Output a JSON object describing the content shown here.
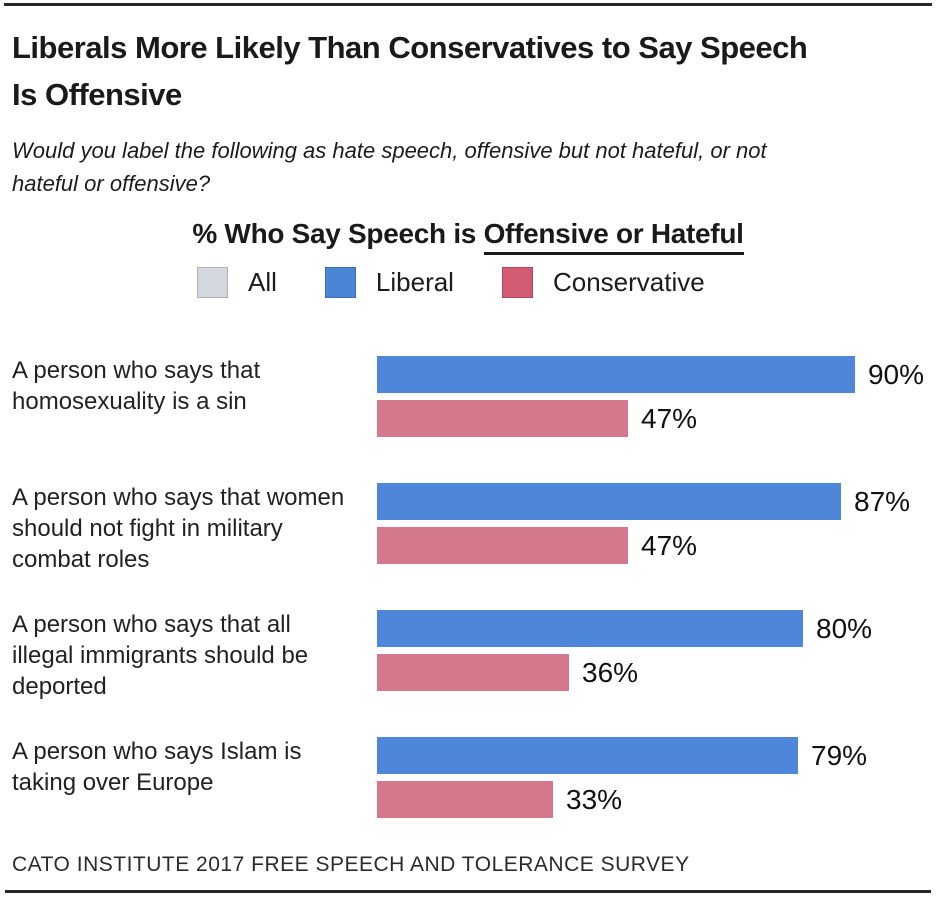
{
  "header": {
    "title": "Liberals More Likely Than Conservatives to Say Speech Is Offensive",
    "title_lines": [
      "Liberals More Likely Than Conservatives to Say Speech",
      "Is Offensive"
    ],
    "subtitle": "Would you label the following as hate speech, offensive but not hateful, or not hateful or offensive?",
    "subtitle_lines": [
      "Would you label the following as hate speech, offensive but not hateful, or not",
      "hateful or offensive?"
    ]
  },
  "chart_header": {
    "prefix": "% Who Say Speech is ",
    "underlined": "Offensive or Hateful"
  },
  "footer": {
    "source": "CATO INSTITUTE 2017 FREE SPEECH AND TOLERANCE SURVEY"
  },
  "colors": {
    "liberal_bar": "#4e87d9",
    "conservative_bar": "#d4798b",
    "legend_all": "#d5d7de",
    "legend_liberal": "#4a86d8",
    "legend_conservative": "#d25a72",
    "rule": "#262626",
    "text": "#1a1a1a"
  },
  "chart_data": {
    "type": "bar",
    "orientation": "horizontal",
    "title": "% Who Say Speech is Offensive or Hateful",
    "xlabel": "",
    "ylabel": "",
    "xlim": [
      0,
      100
    ],
    "grid": false,
    "legend_position": "top",
    "value_suffix": "%",
    "categories": [
      "A person who says that homosexuality is a sin",
      "A person who says that women should not fight in military combat roles",
      "A person who says that all illegal immigrants should be deported",
      "A person who says Islam is taking over Europe"
    ],
    "category_label_lines": [
      [
        "A person who says that",
        "homosexuality is a sin"
      ],
      [
        "A person who says that women",
        "should not fight in military",
        "combat roles"
      ],
      [
        "A person who says that all",
        "illegal immigrants should be",
        "deported"
      ],
      [
        "A person who says Islam is",
        "taking over Europe"
      ]
    ],
    "series": [
      {
        "name": "Liberal",
        "color": "#4e87d9",
        "values": [
          90,
          87,
          80,
          79
        ]
      },
      {
        "name": "Conservative",
        "color": "#d4798b",
        "values": [
          47,
          47,
          36,
          33
        ]
      }
    ],
    "legend": [
      {
        "label": "All",
        "color": "#d5d7de"
      },
      {
        "label": "Liberal",
        "color": "#4a86d8"
      },
      {
        "label": "Conservative",
        "color": "#d25a72"
      }
    ]
  }
}
